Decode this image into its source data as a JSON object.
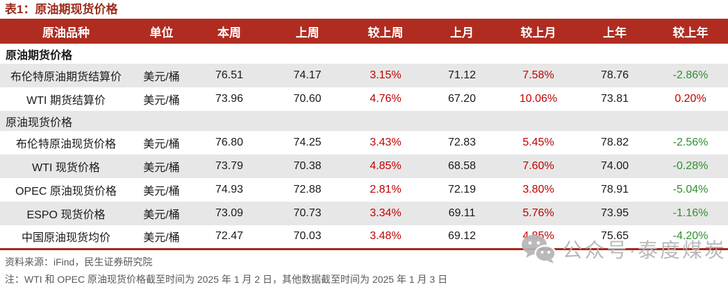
{
  "title": "表1：原油期现货价格",
  "table": {
    "columns": [
      "原油品种",
      "单位",
      "本周",
      "上周",
      "较上周",
      "上月",
      "较上月",
      "上年",
      "较上年"
    ],
    "rows": [
      {
        "type": "section",
        "label": "原油期货价格"
      },
      {
        "type": "data",
        "cells": [
          "布伦特原油期货结算价",
          "美元/桶",
          "76.51",
          "74.17",
          "3.15%",
          "71.12",
          "7.58%",
          "78.76",
          "-2.86%"
        ]
      },
      {
        "type": "data",
        "cells": [
          "WTI 期货结算价",
          "美元/桶",
          "73.96",
          "70.60",
          "4.76%",
          "67.20",
          "10.06%",
          "73.81",
          "0.20%"
        ]
      },
      {
        "type": "section",
        "label": "原油现货价格"
      },
      {
        "type": "data",
        "cells": [
          "布伦特原油现货价格",
          "美元/桶",
          "76.80",
          "74.25",
          "3.43%",
          "72.83",
          "5.45%",
          "78.82",
          "-2.56%"
        ]
      },
      {
        "type": "data",
        "cells": [
          "WTI 现货价格",
          "美元/桶",
          "73.79",
          "70.38",
          "4.85%",
          "68.58",
          "7.60%",
          "74.00",
          "-0.28%"
        ]
      },
      {
        "type": "data",
        "cells": [
          "OPEC 原油现货价格",
          "美元/桶",
          "74.93",
          "72.88",
          "2.81%",
          "72.19",
          "3.80%",
          "78.91",
          "-5.04%"
        ]
      },
      {
        "type": "data",
        "cells": [
          "ESPO 现货价格",
          "美元/桶",
          "73.09",
          "70.73",
          "3.34%",
          "69.11",
          "5.76%",
          "73.95",
          "-1.16%"
        ]
      },
      {
        "type": "data",
        "cells": [
          "中国原油现货均价",
          "美元/桶",
          "72.47",
          "70.03",
          "3.48%",
          "69.12",
          "4.85%",
          "75.65",
          "-4.20%"
        ]
      }
    ]
  },
  "footer": {
    "source": "资料来源：iFind，民生证券研究院",
    "note": "注：WTI 和 OPEC 原油现货价格截至时间为 2025 年 1 月 2 日，其他数据截至时间为 2025 年 1 月 3 日"
  },
  "watermark": {
    "label": "公众号·泰度煤炭",
    "icon": "wechat-icon"
  },
  "colors": {
    "header_bg": "#b02c20",
    "title": "#9c2b1b",
    "up_red": "#c00000",
    "down_green": "#2f8f2f",
    "stripe": "#e7e7e7",
    "border_red": "#a6281b",
    "footer_gray": "#595959",
    "watermark_gray": "#b5b5b5"
  }
}
